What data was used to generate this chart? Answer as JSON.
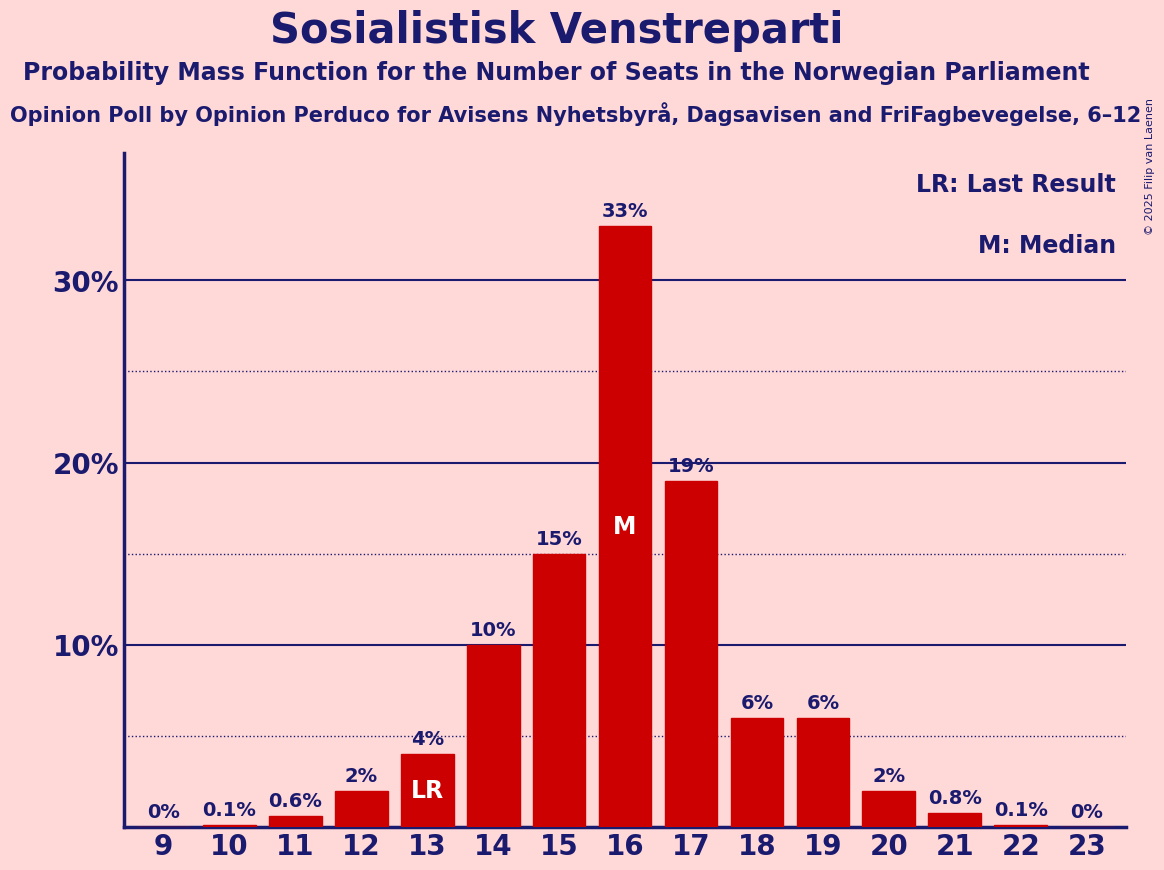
{
  "title": "Sosialistisk Venstreparti",
  "subtitle": "Probability Mass Function for the Number of Seats in the Norwegian Parliament",
  "subtitle2": "Opinion Poll by Opinion Perduco for Avisens Nyhetsbyrå, Dagsavisen and FriFagbevegelse, 6–12",
  "copyright": "© 2025 Filip van Laenen",
  "seats": [
    9,
    10,
    11,
    12,
    13,
    14,
    15,
    16,
    17,
    18,
    19,
    20,
    21,
    22,
    23
  ],
  "probabilities": [
    0.0,
    0.1,
    0.6,
    2.0,
    4.0,
    10.0,
    15.0,
    33.0,
    19.0,
    6.0,
    6.0,
    2.0,
    0.8,
    0.1,
    0.0
  ],
  "bar_color": "#CC0000",
  "background_color": "#FFD8D8",
  "axis_color": "#1a1a6e",
  "text_color": "#1a1a6e",
  "label_inside_bars": {
    "13": "LR",
    "16": "M"
  },
  "label_color_inside": "#FFFFFF",
  "solid_gridlines": [
    10.0,
    20.0,
    30.0
  ],
  "dotted_gridlines": [
    5.0,
    15.0,
    25.0
  ],
  "ytick_labels": [
    "10%",
    "20%",
    "30%"
  ],
  "ytick_values": [
    10.0,
    20.0,
    30.0
  ],
  "ylim": [
    0,
    37
  ],
  "legend_lr": "LR: Last Result",
  "legend_m": "M: Median",
  "title_fontsize": 30,
  "subtitle_fontsize": 17,
  "subtitle2_fontsize": 15,
  "bar_label_fontsize": 14,
  "inside_label_fontsize": 17,
  "legend_fontsize": 17,
  "ytick_fontsize": 20,
  "xtick_fontsize": 20
}
